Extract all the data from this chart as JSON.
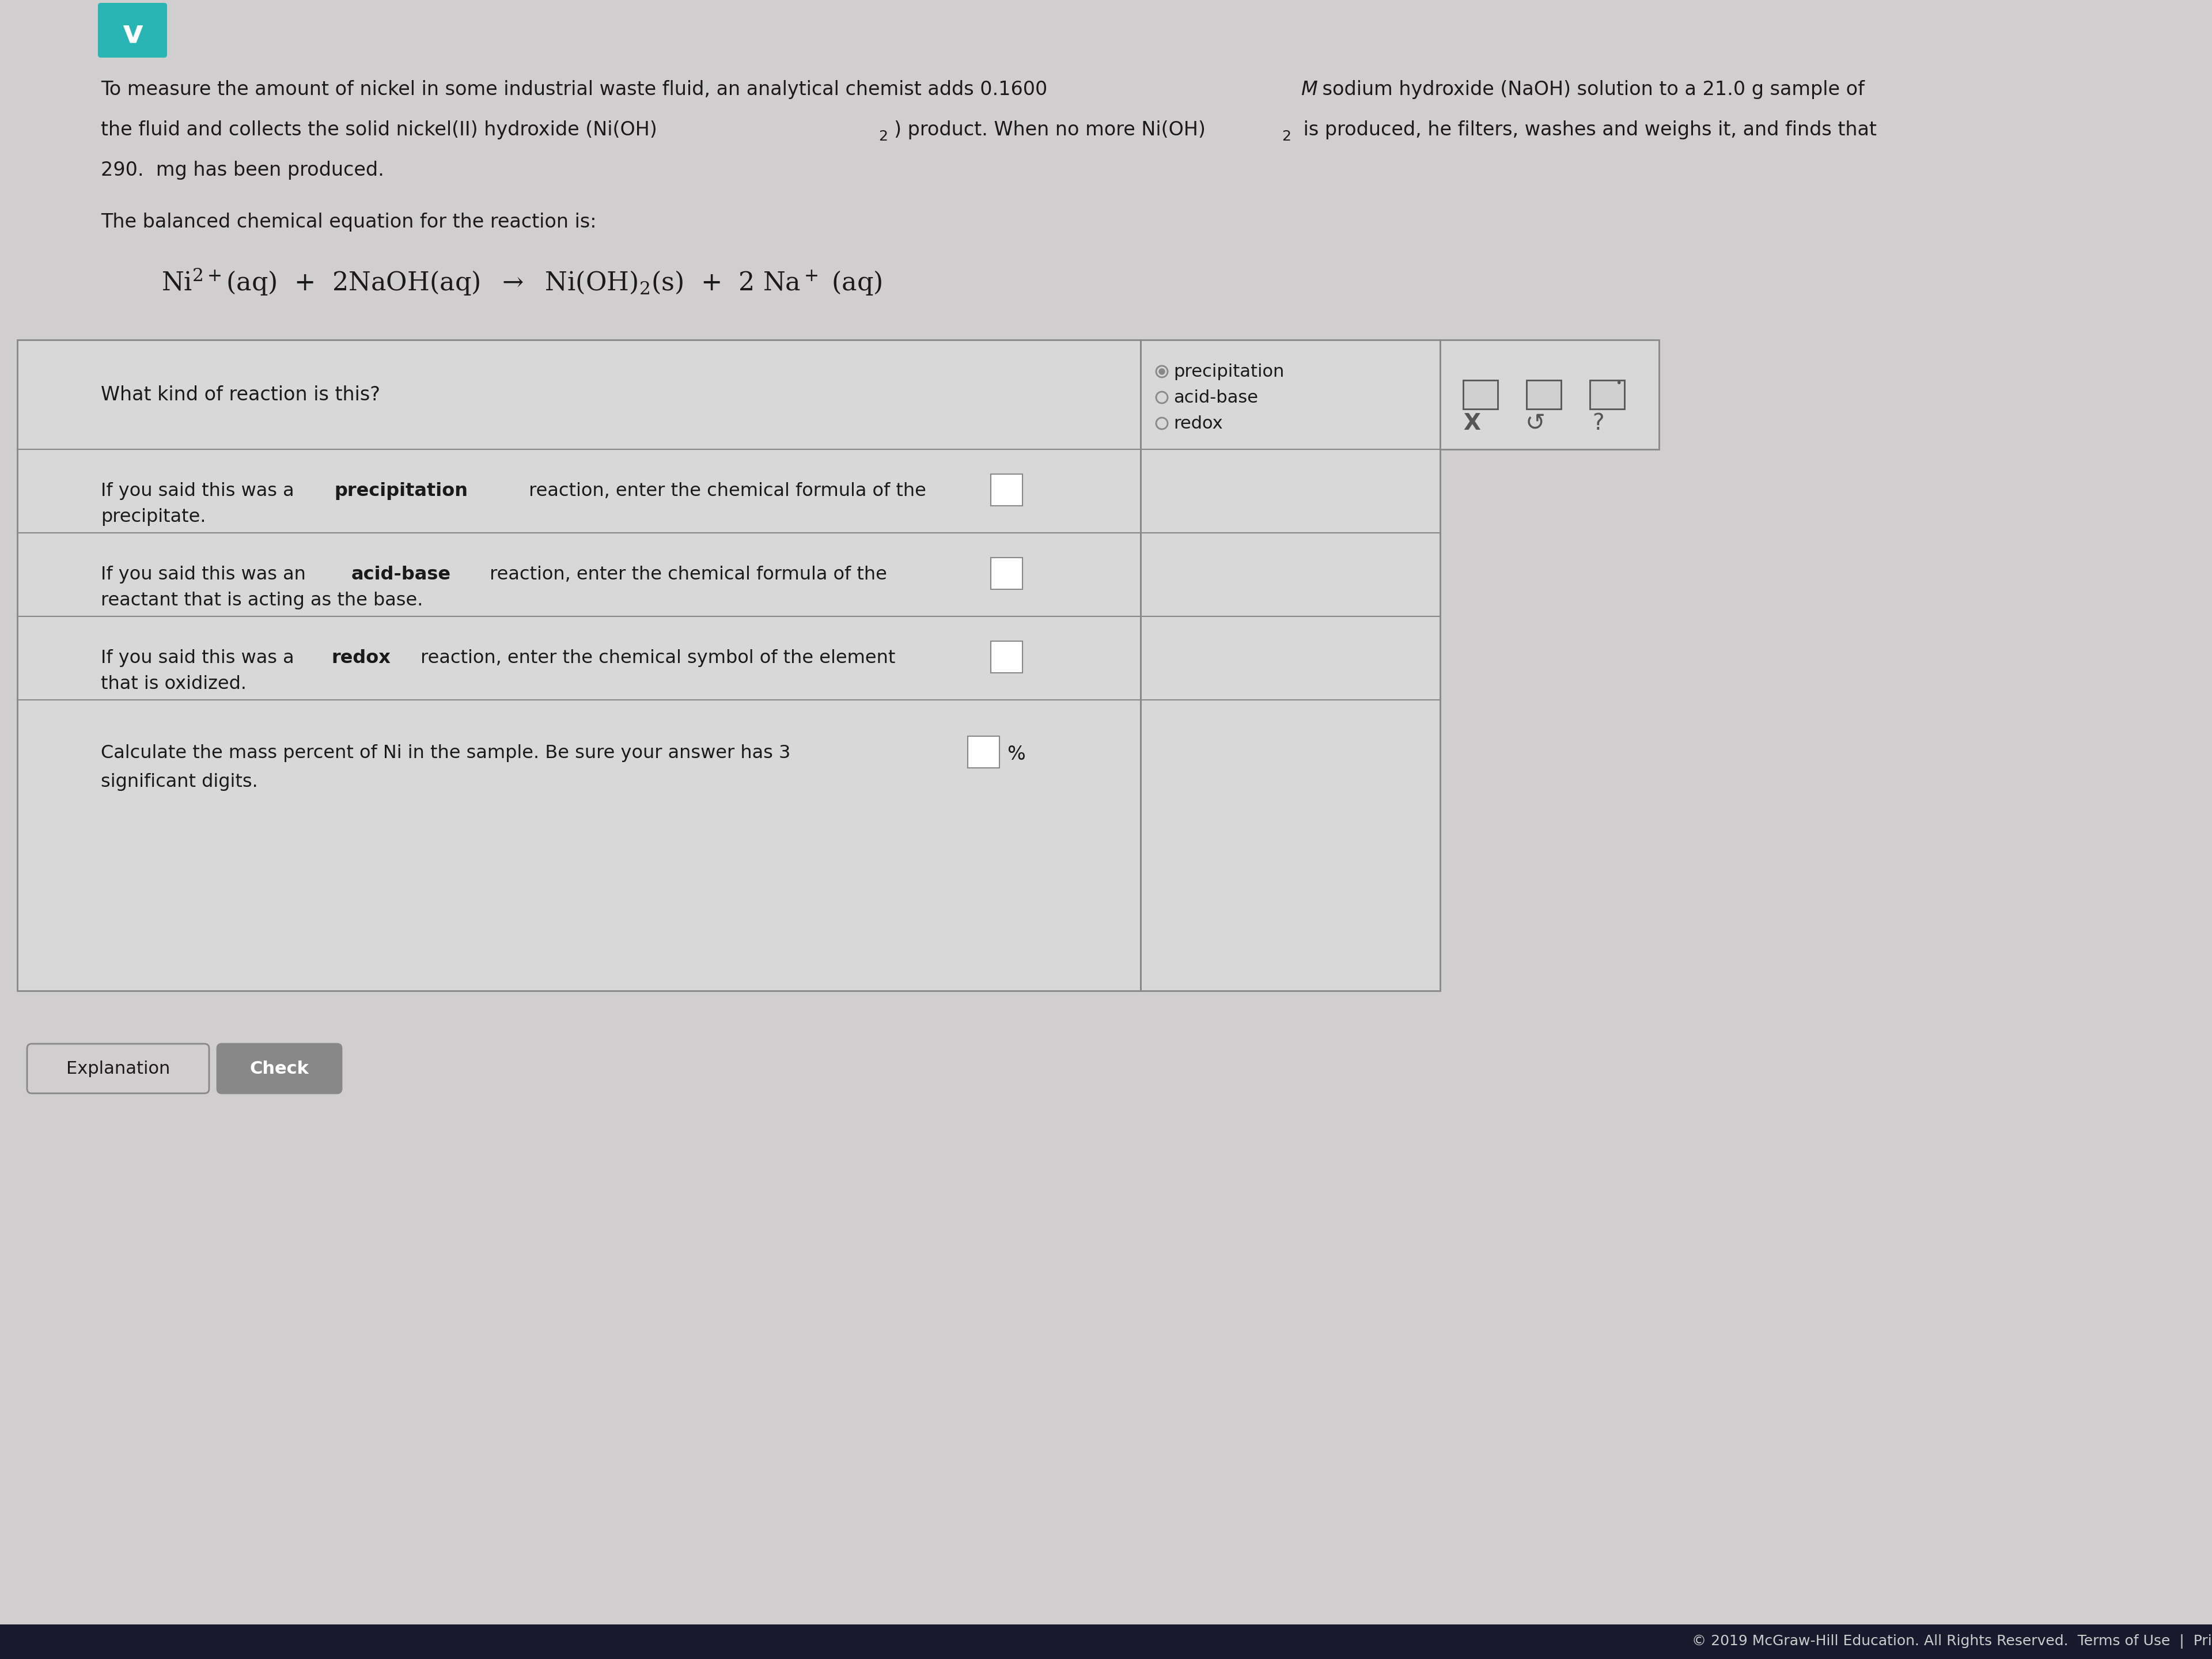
{
  "bg_color": "#d0cece",
  "white_bg": "#ffffff",
  "teal_color": "#2ab5b5",
  "dark_text": "#1a1a1a",
  "border_color": "#888888",
  "table_bg": "#e8e8e8",
  "header_bg": "#c8c8c8",
  "intro_line1": "To measure the amount of nickel in some industrial waste fluid, an analytical chemist adds 0.1600 ",
  "intro_M": "M",
  "intro_line1b": " sodium hydroxide (NaOH) solution to a 21.0 g sample of",
  "intro_line2a": "the fluid and collects the solid nickel(II) hydroxide ",
  "intro_line2b": "(Ni(OH)",
  "intro_line2b2": ")",
  "intro_line2c": " product. When no more Ni(OH)",
  "intro_line2c2": "2",
  "intro_line2d": " is produced, he filters, washes and weighs it, and finds that",
  "intro_line3": "290.  mg has been produced.",
  "balanced_label": "The balanced chemical equation for the reaction is:",
  "equation": "Ni$^{2+}$(aq)  +  2NaOH(aq)  →  Ni(OH)$_2$(s)  +  2 Na$^+$ (aq)",
  "q1_text": "What kind of reaction is this?",
  "opt1": "precipitation",
  "opt2": "acid-base",
  "opt3": "redox",
  "q2_text1": "If you said this was a ",
  "q2_bold": "precipitation",
  "q2_text2": " reaction, enter the chemical formula of the\nprecipitate.",
  "q3_text1": "If you said this was an ",
  "q3_bold": "acid-base",
  "q3_text2": " reaction, enter the chemical formula of the\nreactant that is acting as the base.",
  "q4_text1": "If you said this was a ",
  "q4_bold": "redox",
  "q4_text2": " reaction, enter the chemical symbol of the element\nthat is oxidized.",
  "q5_text": "Calculate the mass percent of Ni in the sample. Be sure your answer has 3\nsignificant digits.",
  "q5_suffix": "%",
  "btn1": "Explanation",
  "btn2": "Check",
  "footer": "© 2019 McGraw-Hill Education. All Rights Reserved.  Terms of Use  |  Pri"
}
